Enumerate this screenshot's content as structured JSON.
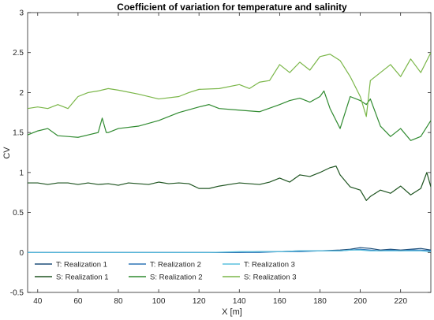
{
  "chart_data": {
    "type": "line",
    "title": "Coefficient of variation for temperature and salinity",
    "xlabel": "X [m]",
    "ylabel": "CV",
    "xlim": [
      35,
      235
    ],
    "ylim": [
      -0.5,
      3
    ],
    "xticks": [
      40,
      60,
      80,
      100,
      120,
      140,
      160,
      180,
      200,
      220
    ],
    "yticks": [
      -0.5,
      0,
      0.5,
      1,
      1.5,
      2,
      2.5,
      3
    ],
    "xtick_labels": [
      "40",
      "60",
      "80",
      "100",
      "120",
      "140",
      "160",
      "180",
      "200",
      "220"
    ],
    "ytick_labels": [
      "-0.5",
      "0",
      "0.5",
      "1",
      "1.5",
      "2",
      "2.5",
      "3"
    ],
    "grid": false,
    "legend_position": "bottom-left",
    "series": [
      {
        "name": "T: Realization 1",
        "color": "#1f4e79",
        "x": [
          35,
          50,
          65,
          80,
          95,
          110,
          125,
          140,
          150,
          160,
          170,
          180,
          190,
          195,
          200,
          205,
          210,
          215,
          220,
          225,
          230,
          235
        ],
        "y": [
          0.0,
          0.0,
          0.0,
          0.0,
          0.0,
          0.0,
          0.0,
          0.0,
          0.01,
          0.01,
          0.02,
          0.02,
          0.03,
          0.04,
          0.06,
          0.05,
          0.03,
          0.04,
          0.03,
          0.04,
          0.05,
          0.03
        ]
      },
      {
        "name": "T: Realization 2",
        "color": "#2e75b6",
        "x": [
          35,
          50,
          65,
          80,
          95,
          110,
          125,
          140,
          150,
          160,
          170,
          180,
          190,
          195,
          200,
          205,
          210,
          215,
          220,
          225,
          230,
          235
        ],
        "y": [
          0.0,
          0.0,
          0.0,
          0.0,
          0.0,
          0.0,
          0.0,
          0.0,
          0.0,
          0.01,
          0.01,
          0.02,
          0.02,
          0.03,
          0.04,
          0.03,
          0.02,
          0.03,
          0.02,
          0.03,
          0.03,
          0.02
        ]
      },
      {
        "name": "T: Realization 3",
        "color": "#5bc0de",
        "x": [
          35,
          50,
          65,
          80,
          95,
          110,
          125,
          140,
          150,
          160,
          170,
          180,
          190,
          195,
          200,
          205,
          210,
          215,
          220,
          225,
          230,
          235
        ],
        "y": [
          0.0,
          0.0,
          0.0,
          0.0,
          0.0,
          0.0,
          0.0,
          0.01,
          0.01,
          0.01,
          0.02,
          0.02,
          0.02,
          0.03,
          0.03,
          0.02,
          0.02,
          0.02,
          0.02,
          0.02,
          0.02,
          0.01
        ]
      },
      {
        "name": "S: Realization 1",
        "color": "#1e5420",
        "x": [
          35,
          40,
          45,
          50,
          55,
          60,
          65,
          70,
          75,
          80,
          85,
          90,
          95,
          100,
          105,
          110,
          115,
          120,
          125,
          130,
          135,
          140,
          145,
          150,
          155,
          160,
          165,
          170,
          175,
          180,
          185,
          188,
          190,
          195,
          200,
          203,
          205,
          210,
          215,
          220,
          225,
          230,
          233,
          235
        ],
        "y": [
          0.87,
          0.87,
          0.85,
          0.87,
          0.87,
          0.85,
          0.87,
          0.85,
          0.86,
          0.84,
          0.87,
          0.86,
          0.85,
          0.88,
          0.86,
          0.87,
          0.86,
          0.8,
          0.8,
          0.83,
          0.85,
          0.87,
          0.86,
          0.85,
          0.88,
          0.93,
          0.88,
          0.97,
          0.95,
          1.0,
          1.06,
          1.08,
          0.97,
          0.82,
          0.78,
          0.65,
          0.7,
          0.78,
          0.74,
          0.83,
          0.72,
          0.8,
          1.0,
          0.82
        ]
      },
      {
        "name": "S: Realization 2",
        "color": "#2f8a2f",
        "x": [
          35,
          40,
          45,
          50,
          55,
          60,
          65,
          70,
          72,
          74,
          75,
          80,
          90,
          100,
          110,
          120,
          125,
          130,
          140,
          150,
          160,
          165,
          170,
          175,
          180,
          182,
          185,
          190,
          195,
          200,
          203,
          205,
          210,
          215,
          220,
          225,
          230,
          235
        ],
        "y": [
          1.47,
          1.52,
          1.55,
          1.46,
          1.45,
          1.44,
          1.47,
          1.5,
          1.68,
          1.5,
          1.5,
          1.55,
          1.58,
          1.65,
          1.75,
          1.82,
          1.85,
          1.8,
          1.78,
          1.76,
          1.85,
          1.9,
          1.93,
          1.88,
          1.95,
          2.02,
          1.8,
          1.55,
          1.95,
          1.9,
          1.85,
          1.92,
          1.58,
          1.45,
          1.55,
          1.4,
          1.45,
          1.65
        ]
      },
      {
        "name": "S: Realization 3",
        "color": "#7ab648",
        "x": [
          35,
          40,
          45,
          50,
          55,
          60,
          65,
          70,
          75,
          80,
          90,
          100,
          110,
          115,
          120,
          130,
          140,
          145,
          150,
          155,
          160,
          165,
          170,
          175,
          180,
          185,
          190,
          195,
          200,
          203,
          205,
          210,
          215,
          220,
          225,
          230,
          235
        ],
        "y": [
          1.8,
          1.82,
          1.8,
          1.85,
          1.8,
          1.95,
          2.0,
          2.02,
          2.05,
          2.03,
          1.98,
          1.92,
          1.95,
          2.0,
          2.04,
          2.05,
          2.1,
          2.05,
          2.13,
          2.15,
          2.35,
          2.25,
          2.38,
          2.28,
          2.45,
          2.48,
          2.4,
          2.2,
          1.95,
          1.7,
          2.15,
          2.25,
          2.35,
          2.2,
          2.42,
          2.25,
          2.5
        ]
      }
    ]
  }
}
